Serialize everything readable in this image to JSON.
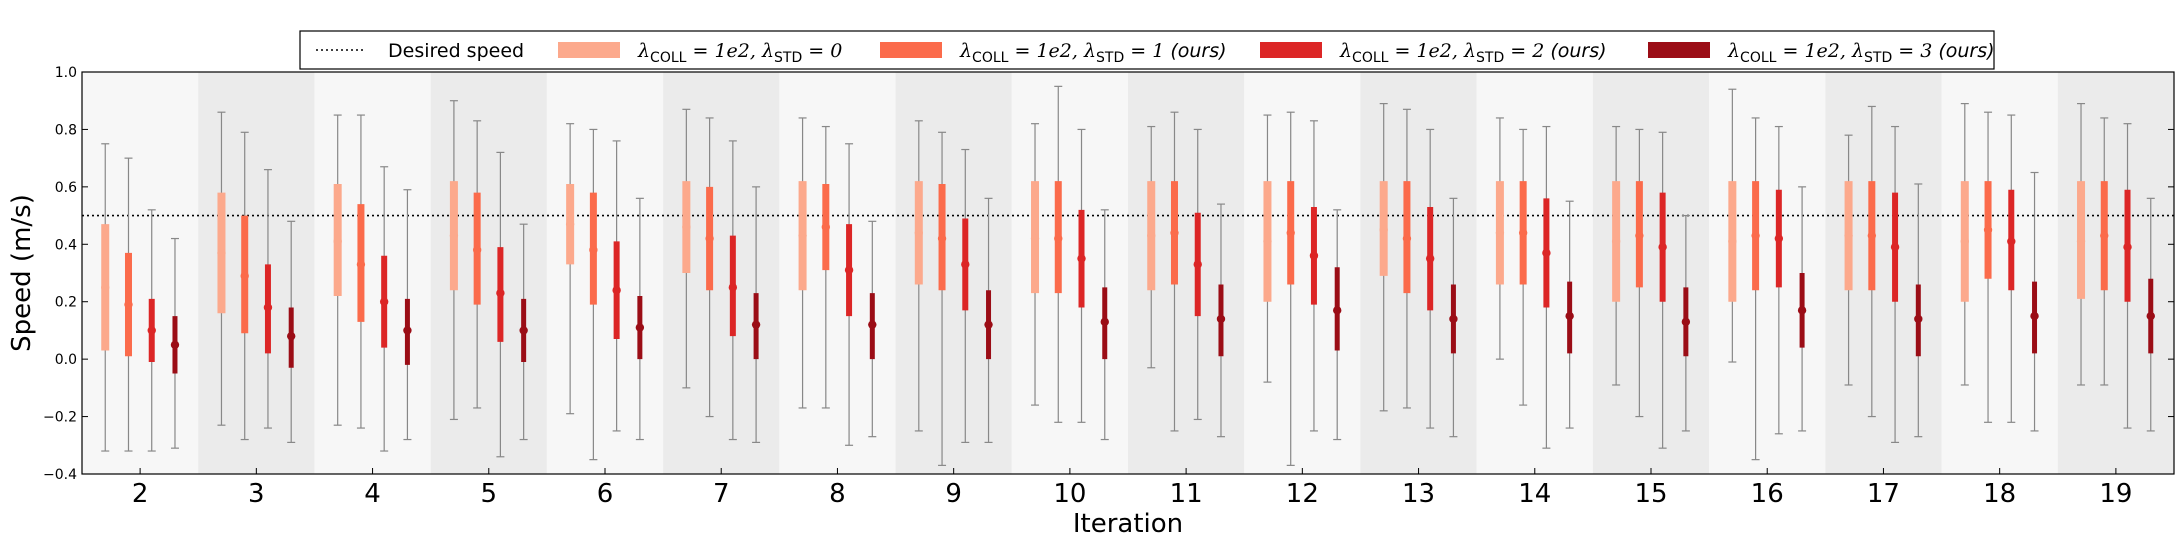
{
  "chart_data": {
    "type": "errorbar",
    "xlabel": "Iteration",
    "ylabel": "Speed (m/s)",
    "ylim": [
      -0.4,
      1.0
    ],
    "yticks": [
      "−0.4",
      "−0.2",
      "0.0",
      "0.2",
      "0.4",
      "0.6",
      "0.8",
      "1.0"
    ],
    "ytick_values": [
      -0.4,
      -0.2,
      0.0,
      0.2,
      0.4,
      0.6,
      0.8,
      1.0
    ],
    "categories": [
      "2",
      "3",
      "4",
      "5",
      "6",
      "7",
      "8",
      "9",
      "10",
      "11",
      "12",
      "13",
      "14",
      "15",
      "16",
      "17",
      "18",
      "19"
    ],
    "desired_speed": 0.5,
    "legend_placement": "top-center",
    "legend": {
      "desired": "Desired speed",
      "entries": [
        {
          "sym": "λ",
          "sub1": "COLL",
          "mid": " = 1e2, ",
          "sub2": "STD",
          "tail": " = 0",
          "suffix": ""
        },
        {
          "sym": "λ",
          "sub1": "COLL",
          "mid": " = 1e2, ",
          "sub2": "STD",
          "tail": " = 1",
          "suffix": " (ours)"
        },
        {
          "sym": "λ",
          "sub1": "COLL",
          "mid": " = 1e2, ",
          "sub2": "STD",
          "tail": " = 2",
          "suffix": " (ours)"
        },
        {
          "sym": "λ",
          "sub1": "COLL",
          "mid": " = 1e2, ",
          "sub2": "STD",
          "tail": " = 3",
          "suffix": " (ours)"
        }
      ]
    },
    "colors": {
      "s0": "#fca98c",
      "s1": "#fb6b4b",
      "s2": "#dc2626",
      "s3": "#9b0d16",
      "whisker": "#888888",
      "band_light": "#f7f7f7",
      "band_dark": "#ebebeb"
    },
    "series": [
      {
        "name": "lambda_COLL=1e2, lambda_STD=0",
        "mean": [
          0.25,
          0.37,
          0.41,
          0.43,
          0.47,
          0.46,
          0.43,
          0.44,
          0.42,
          0.43,
          0.41,
          0.45,
          0.44,
          0.41,
          0.41,
          0.43,
          0.41,
          0.41
        ],
        "std_low": [
          0.03,
          0.16,
          0.22,
          0.24,
          0.33,
          0.3,
          0.24,
          0.26,
          0.23,
          0.24,
          0.2,
          0.29,
          0.26,
          0.2,
          0.2,
          0.24,
          0.2,
          0.21
        ],
        "std_high": [
          0.47,
          0.58,
          0.61,
          0.62,
          0.61,
          0.62,
          0.62,
          0.62,
          0.62,
          0.62,
          0.62,
          0.62,
          0.62,
          0.62,
          0.62,
          0.62,
          0.62,
          0.62
        ],
        "min": [
          -0.32,
          -0.23,
          -0.23,
          -0.21,
          -0.19,
          -0.1,
          -0.17,
          -0.25,
          -0.16,
          -0.03,
          -0.08,
          -0.18,
          0.0,
          -0.09,
          -0.01,
          -0.09,
          -0.09,
          -0.09
        ],
        "max": [
          0.75,
          0.86,
          0.85,
          0.9,
          0.82,
          0.87,
          0.84,
          0.83,
          0.82,
          0.81,
          0.85,
          0.89,
          0.84,
          0.81,
          0.94,
          0.78,
          0.89,
          0.89
        ]
      },
      {
        "name": "lambda_COLL=1e2, lambda_STD=1 (ours)",
        "mean": [
          0.19,
          0.29,
          0.33,
          0.38,
          0.38,
          0.42,
          0.46,
          0.42,
          0.42,
          0.44,
          0.44,
          0.42,
          0.44,
          0.43,
          0.43,
          0.43,
          0.45,
          0.43
        ],
        "std_low": [
          0.01,
          0.09,
          0.13,
          0.19,
          0.19,
          0.24,
          0.31,
          0.24,
          0.23,
          0.26,
          0.26,
          0.23,
          0.26,
          0.25,
          0.24,
          0.24,
          0.28,
          0.24
        ],
        "std_high": [
          0.37,
          0.5,
          0.54,
          0.58,
          0.58,
          0.6,
          0.61,
          0.61,
          0.62,
          0.62,
          0.62,
          0.62,
          0.62,
          0.62,
          0.62,
          0.62,
          0.62,
          0.62
        ],
        "min": [
          -0.32,
          -0.28,
          -0.24,
          -0.17,
          -0.35,
          -0.2,
          -0.17,
          -0.37,
          -0.22,
          -0.25,
          -0.37,
          -0.17,
          -0.16,
          -0.2,
          -0.35,
          -0.2,
          -0.22,
          -0.09
        ],
        "max": [
          0.7,
          0.79,
          0.85,
          0.83,
          0.8,
          0.84,
          0.81,
          0.79,
          0.95,
          0.86,
          0.86,
          0.87,
          0.8,
          0.8,
          0.84,
          0.88,
          0.86,
          0.84
        ]
      },
      {
        "name": "lambda_COLL=1e2, lambda_STD=2 (ours)",
        "mean": [
          0.1,
          0.18,
          0.2,
          0.23,
          0.24,
          0.25,
          0.31,
          0.33,
          0.35,
          0.33,
          0.36,
          0.35,
          0.37,
          0.39,
          0.42,
          0.39,
          0.41,
          0.39
        ],
        "std_low": [
          -0.01,
          0.02,
          0.04,
          0.06,
          0.07,
          0.08,
          0.15,
          0.17,
          0.18,
          0.15,
          0.19,
          0.17,
          0.18,
          0.2,
          0.25,
          0.2,
          0.24,
          0.2
        ],
        "std_high": [
          0.21,
          0.33,
          0.36,
          0.39,
          0.41,
          0.43,
          0.47,
          0.49,
          0.52,
          0.51,
          0.53,
          0.53,
          0.56,
          0.58,
          0.59,
          0.58,
          0.59,
          0.59
        ],
        "min": [
          -0.32,
          -0.24,
          -0.32,
          -0.34,
          -0.25,
          -0.28,
          -0.3,
          -0.29,
          -0.22,
          -0.21,
          -0.25,
          -0.24,
          -0.31,
          -0.31,
          -0.26,
          -0.29,
          -0.22,
          -0.24
        ],
        "max": [
          0.52,
          0.66,
          0.67,
          0.72,
          0.76,
          0.76,
          0.75,
          0.73,
          0.8,
          0.8,
          0.83,
          0.8,
          0.81,
          0.79,
          0.81,
          0.81,
          0.85,
          0.82
        ]
      },
      {
        "name": "lambda_COLL=1e2, lambda_STD=3 (ours)",
        "mean": [
          0.05,
          0.08,
          0.1,
          0.1,
          0.11,
          0.12,
          0.12,
          0.12,
          0.13,
          0.14,
          0.17,
          0.14,
          0.15,
          0.13,
          0.17,
          0.14,
          0.15,
          0.15
        ],
        "std_low": [
          -0.05,
          -0.03,
          -0.02,
          -0.01,
          0.0,
          0.0,
          0.0,
          0.0,
          0.0,
          0.01,
          0.03,
          0.02,
          0.02,
          0.01,
          0.04,
          0.01,
          0.02,
          0.02
        ],
        "std_high": [
          0.15,
          0.18,
          0.21,
          0.21,
          0.22,
          0.23,
          0.23,
          0.24,
          0.25,
          0.26,
          0.32,
          0.26,
          0.27,
          0.25,
          0.3,
          0.26,
          0.27,
          0.28
        ],
        "min": [
          -0.31,
          -0.29,
          -0.28,
          -0.28,
          -0.28,
          -0.29,
          -0.27,
          -0.29,
          -0.28,
          -0.27,
          -0.28,
          -0.27,
          -0.24,
          -0.25,
          -0.25,
          -0.27,
          -0.25,
          -0.25
        ],
        "max": [
          0.42,
          0.48,
          0.59,
          0.47,
          0.56,
          0.6,
          0.48,
          0.56,
          0.52,
          0.54,
          0.52,
          0.56,
          0.55,
          0.5,
          0.6,
          0.61,
          0.65,
          0.56
        ]
      }
    ]
  }
}
